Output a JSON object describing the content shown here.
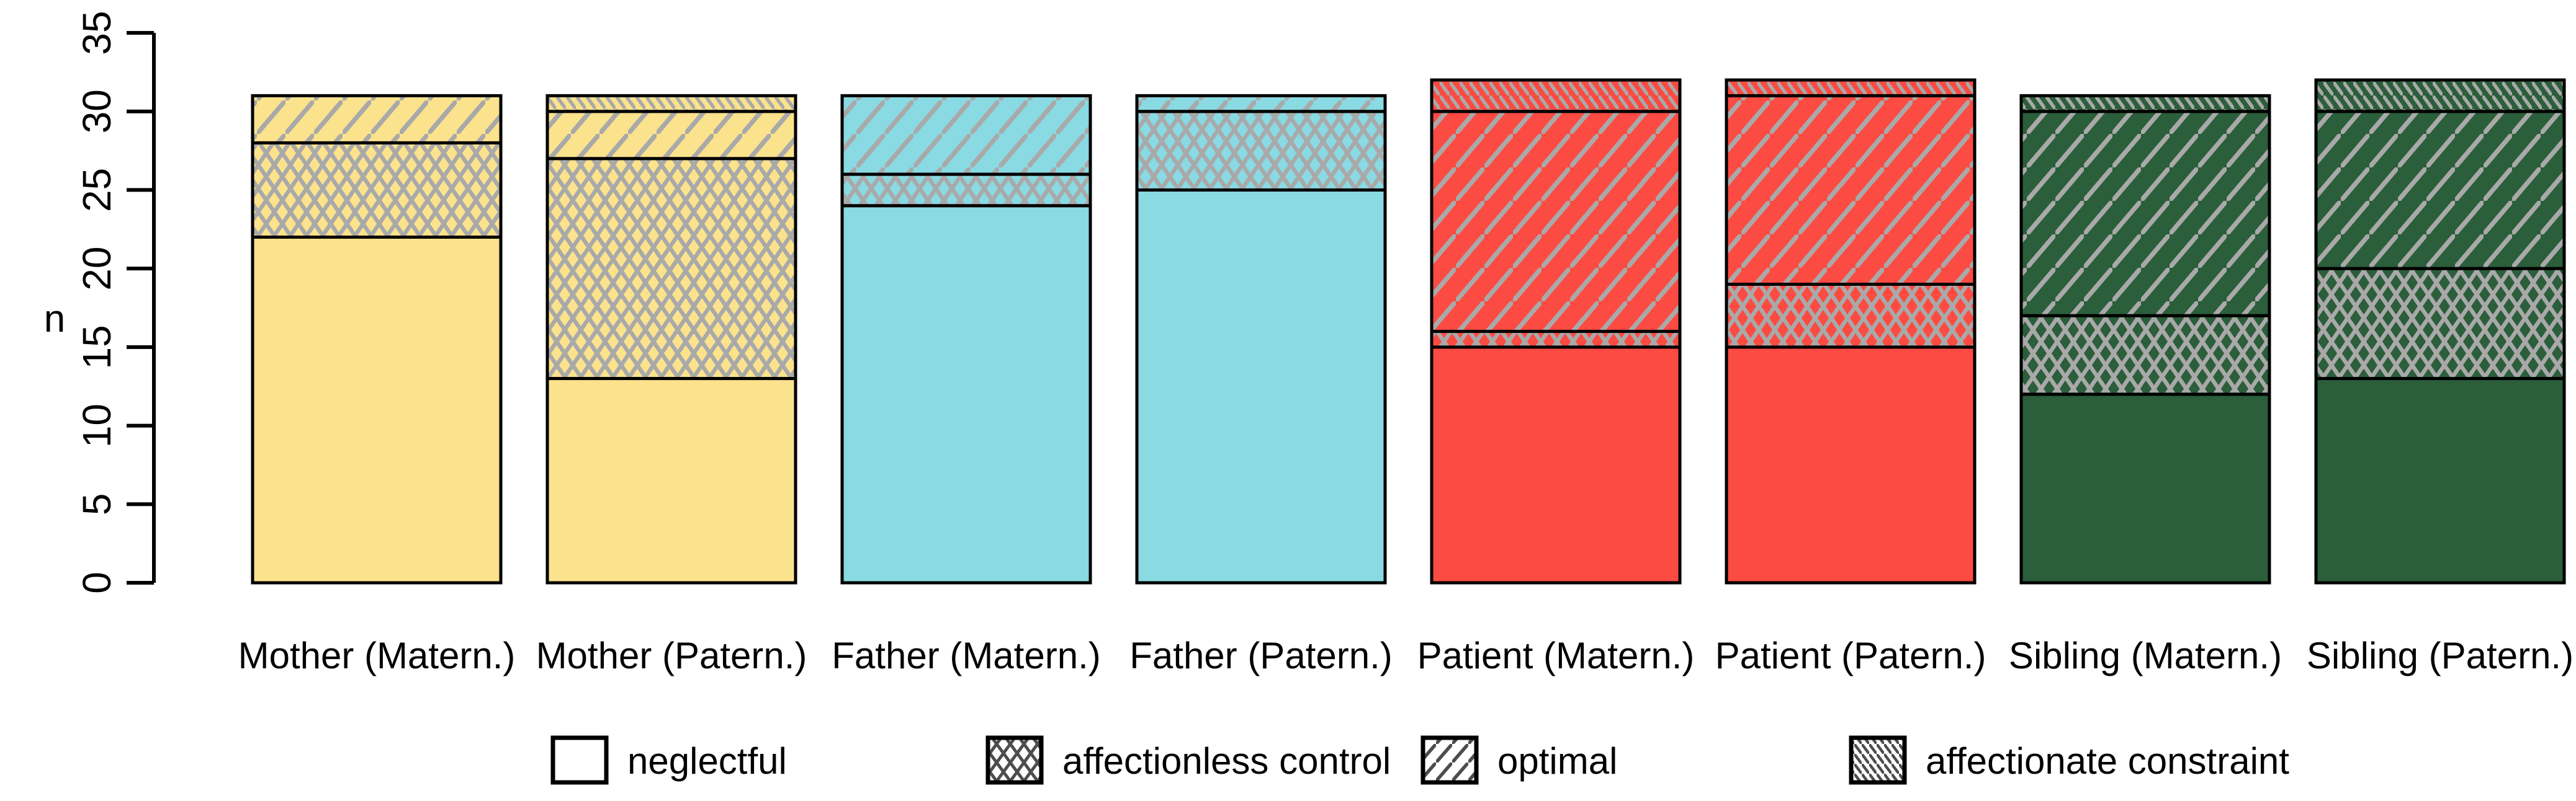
{
  "chart_data": {
    "type": "bar",
    "subtype": "stacked",
    "title": "",
    "xlabel": "",
    "ylabel": "n",
    "ylim": [
      0,
      35
    ],
    "yticks": [
      0,
      5,
      10,
      15,
      20,
      25,
      30,
      35
    ],
    "grid": false,
    "legend_position": "bottom",
    "categories": [
      "Mother (Matern.)",
      "Mother (Patern.)",
      "Father (Matern.)",
      "Father (Patern.)",
      "Patient (Matern.)",
      "Patient (Patern.)",
      "Sibling (Matern.)",
      "Sibling (Patern.)"
    ],
    "bar_totals": [
      31,
      31,
      31,
      31,
      32,
      32,
      31,
      32
    ],
    "series": [
      {
        "name": "neglectful",
        "pattern": "solid",
        "values": [
          22,
          13,
          24,
          25,
          15,
          15,
          12,
          13
        ]
      },
      {
        "name": "affectionless control",
        "pattern": "crosshatch",
        "values": [
          6,
          14,
          2,
          5,
          1,
          4,
          5,
          7
        ]
      },
      {
        "name": "optimal",
        "pattern": "diagonal",
        "values": [
          3,
          3,
          5,
          1,
          14,
          12,
          13,
          10
        ]
      },
      {
        "name": "affectionate constraint",
        "pattern": "dense-backslash",
        "values": [
          0,
          1,
          0,
          0,
          2,
          1,
          1,
          2
        ]
      }
    ],
    "bar_colors": [
      "#FBE28C",
      "#FBE28C",
      "#89DAE2",
      "#89DAE2",
      "#FB4B42",
      "#FB4B42",
      "#2B5E3A",
      "#2B5E3A"
    ],
    "legend": [
      {
        "label": "neglectful",
        "pattern": "solid"
      },
      {
        "label": "affectionless control",
        "pattern": "crosshatch"
      },
      {
        "label": "optimal",
        "pattern": "diagonal"
      },
      {
        "label": "affectionate constraint",
        "pattern": "dense-backslash"
      }
    ],
    "colors": {
      "hatch_line": "#A9A9A9",
      "legend_hatch_line": "#4D4D4D",
      "border": "#000000",
      "background": "#FFFFFF"
    }
  }
}
